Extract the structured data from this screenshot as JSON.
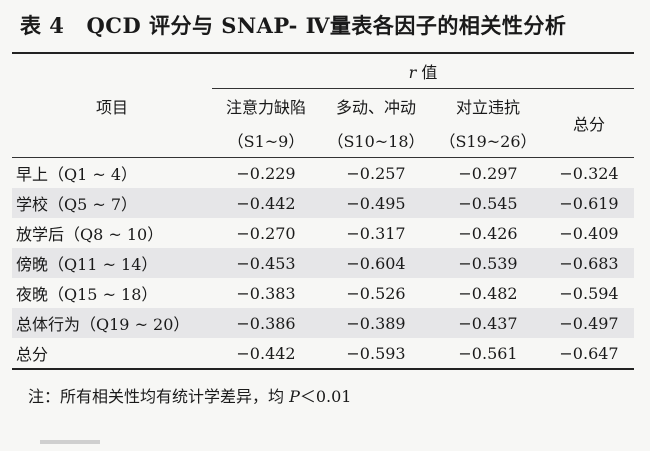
{
  "title": {
    "label": "表 4",
    "text": "QCD 评分与 SNAP- Ⅳ量表各因子的相关性分析"
  },
  "header": {
    "item_col": "项目",
    "r_label": "r",
    "r_suffix": "值",
    "columns": [
      {
        "name": "注意力缺陷",
        "range": "（S1~9）"
      },
      {
        "name": "多动、冲动",
        "range": "（S10~18）"
      },
      {
        "name": "对立违抗",
        "range": "（S19~26）"
      },
      {
        "name": "总分",
        "range": ""
      }
    ]
  },
  "rows": [
    {
      "label": "早上（Q1 ~ 4）",
      "values": [
        "−0.229",
        "−0.257",
        "−0.297",
        "−0.324"
      ]
    },
    {
      "label": "学校（Q5 ~ 7）",
      "values": [
        "−0.442",
        "−0.495",
        "−0.545",
        "−0.619"
      ]
    },
    {
      "label": "放学后（Q8 ~ 10）",
      "values": [
        "−0.270",
        "−0.317",
        "−0.426",
        "−0.409"
      ]
    },
    {
      "label": "傍晚（Q11 ~ 14）",
      "values": [
        "−0.453",
        "−0.604",
        "−0.539",
        "−0.683"
      ]
    },
    {
      "label": "夜晚（Q15 ~ 18）",
      "values": [
        "−0.383",
        "−0.526",
        "−0.482",
        "−0.594"
      ]
    },
    {
      "label": "总体行为（Q19 ~ 20）",
      "values": [
        "−0.386",
        "−0.389",
        "−0.437",
        "−0.497"
      ]
    },
    {
      "label": "总分",
      "values": [
        "−0.442",
        "−0.593",
        "−0.561",
        "−0.647"
      ]
    }
  ],
  "note": {
    "prefix": "注：所有相关性均有统计学差异，均 ",
    "p_symbol": "P",
    "suffix": "＜0.01"
  }
}
